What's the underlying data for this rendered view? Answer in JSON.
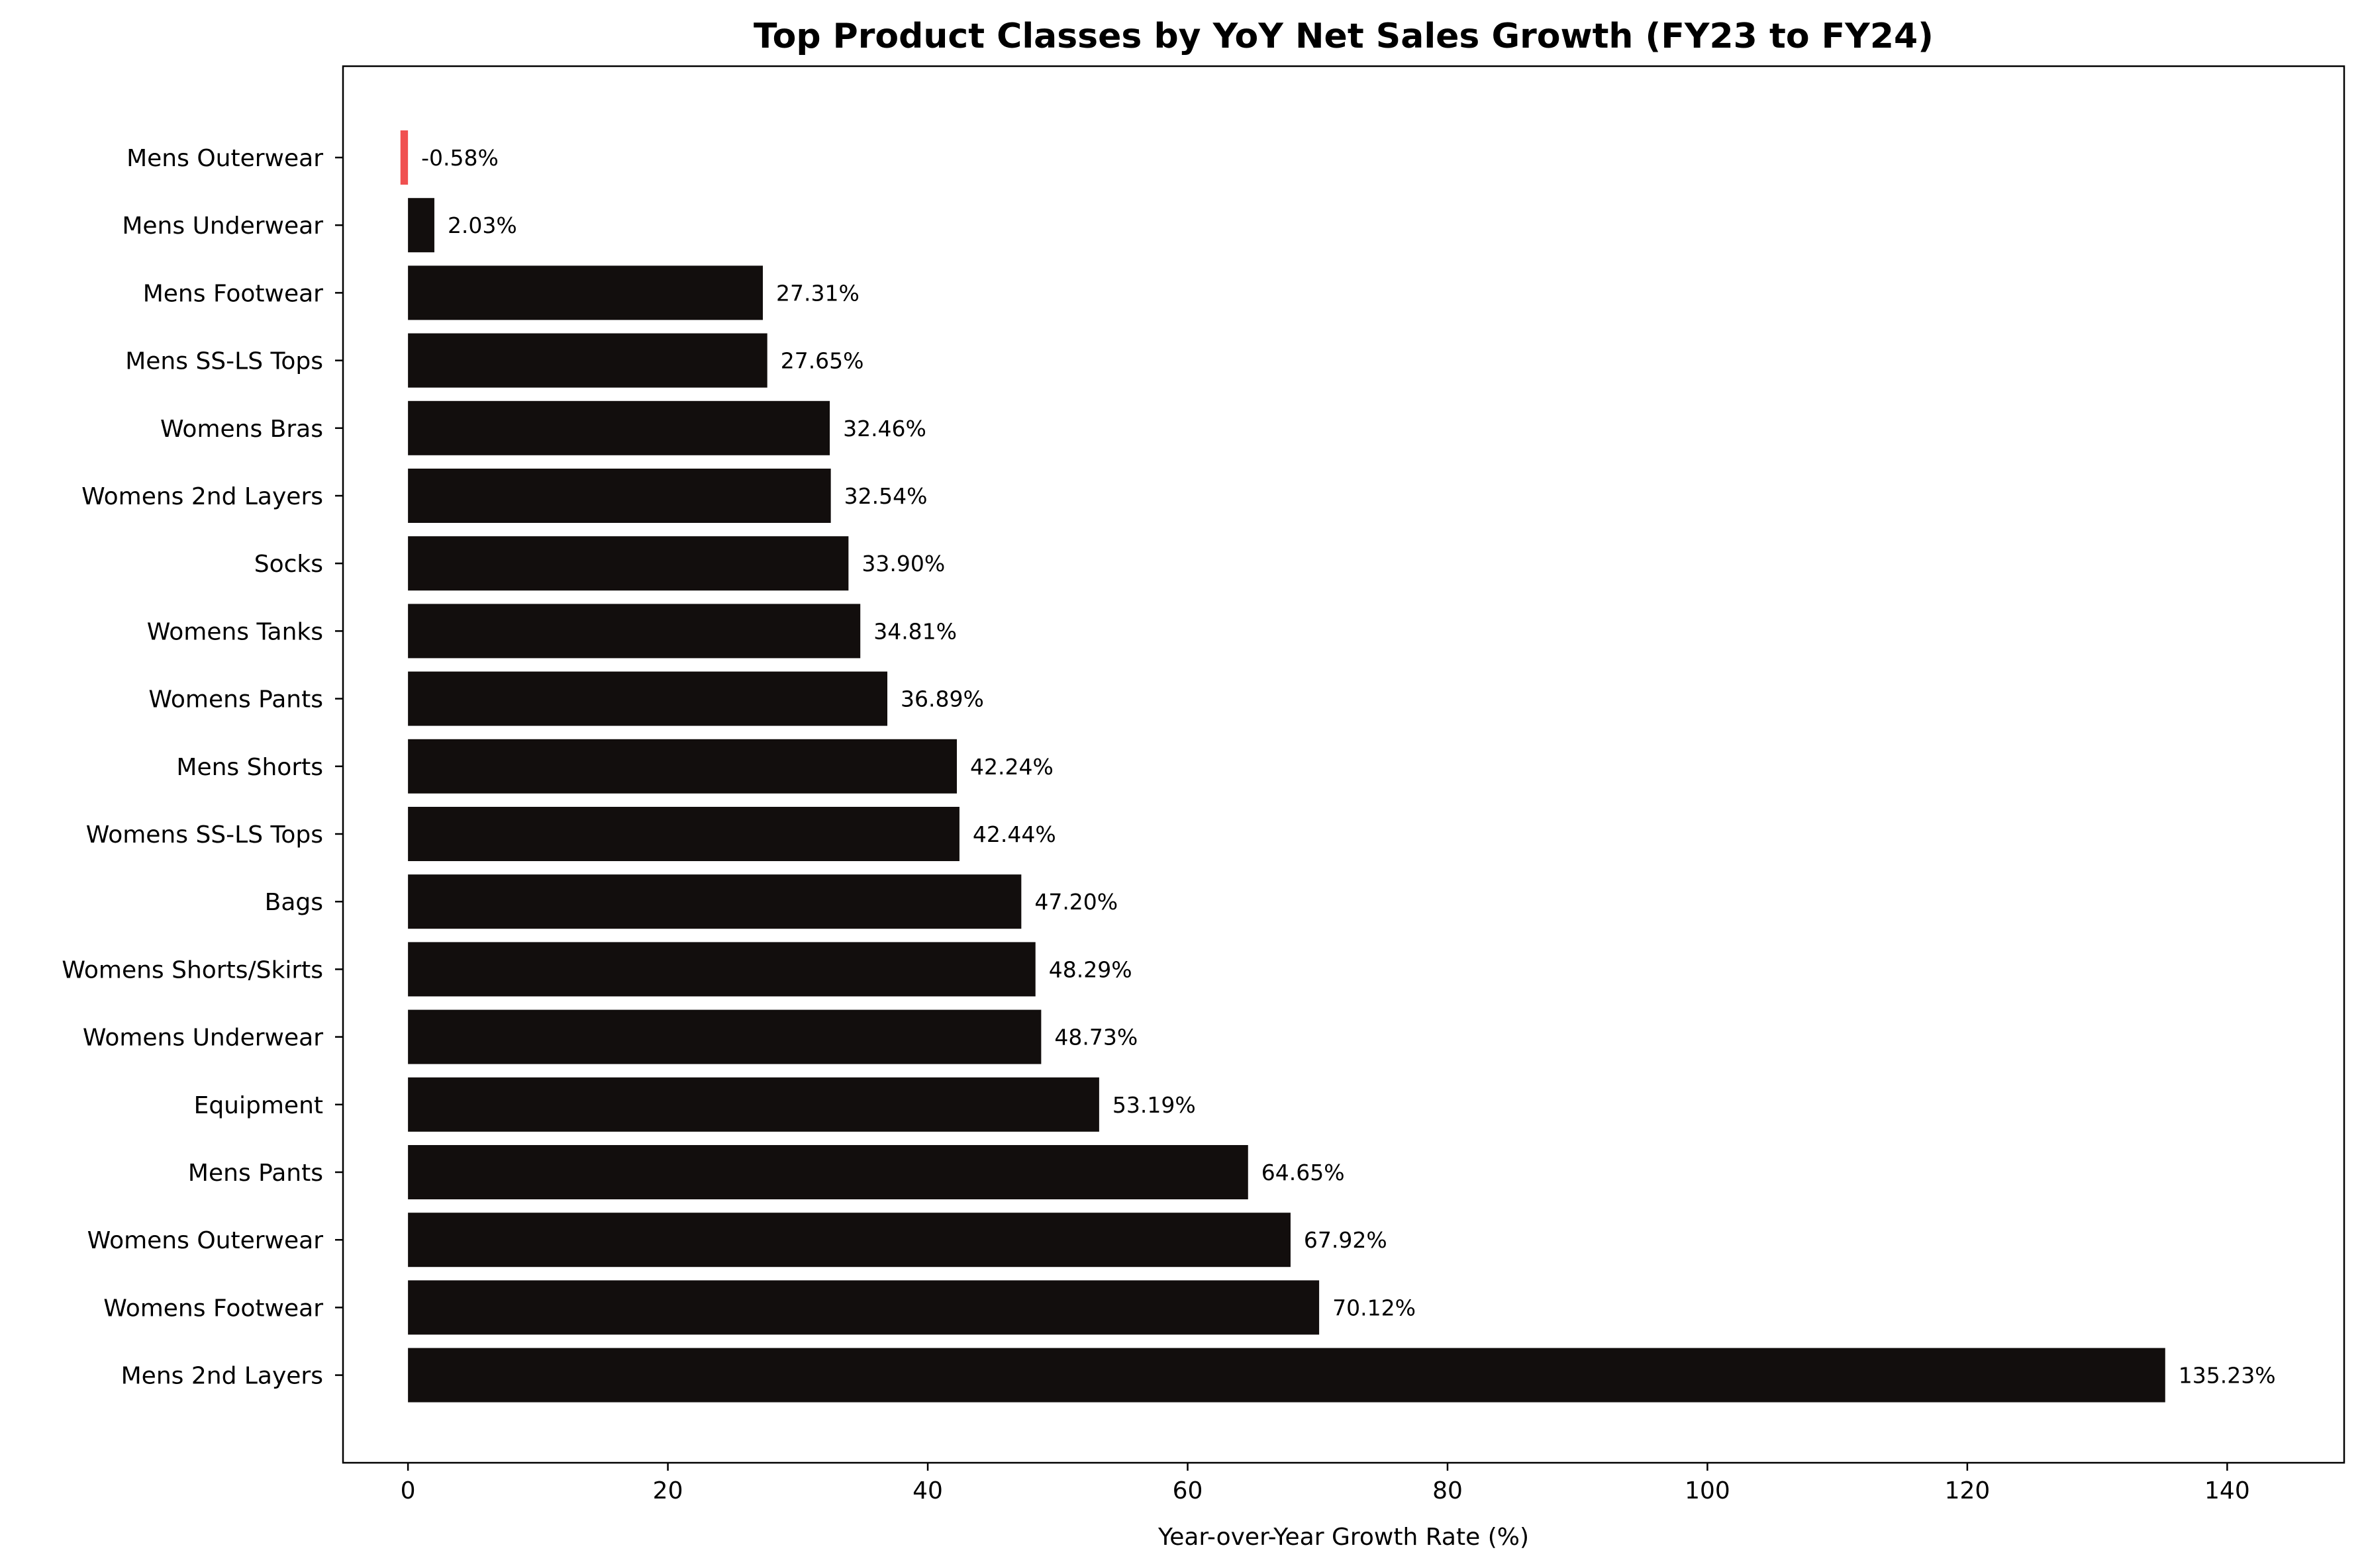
{
  "chart_data": {
    "type": "bar",
    "orientation": "horizontal",
    "title": "Top Product Classes by YoY Net Sales Growth (FY23 to FY24)",
    "xlabel": "Year-over-Year Growth Rate (%)",
    "ylabel": "",
    "xlim": [
      -5,
      149
    ],
    "xticks": [
      0,
      20,
      40,
      60,
      80,
      100,
      120,
      140
    ],
    "grid": false,
    "colors": {
      "positive": "#120e0d",
      "negative": "#f05050"
    },
    "categories": [
      "Mens Outerwear",
      "Mens Underwear",
      "Mens Footwear",
      "Mens SS-LS Tops",
      "Womens Bras",
      "Womens 2nd Layers",
      "Socks",
      "Womens Tanks",
      "Womens Pants",
      "Mens Shorts",
      "Womens SS-LS Tops",
      "Bags",
      "Womens Shorts/Skirts",
      "Womens Underwear",
      "Equipment",
      "Mens Pants",
      "Womens Outerwear",
      "Womens Footwear",
      "Mens 2nd Layers"
    ],
    "values": [
      -0.58,
      2.03,
      27.31,
      27.65,
      32.46,
      32.54,
      33.9,
      34.81,
      36.89,
      42.24,
      42.44,
      47.2,
      48.29,
      48.73,
      53.19,
      64.65,
      67.92,
      70.12,
      135.23
    ],
    "data_labels": [
      "-0.58%",
      "2.03%",
      "27.31%",
      "27.65%",
      "32.46%",
      "32.54%",
      "33.90%",
      "34.81%",
      "36.89%",
      "42.24%",
      "42.44%",
      "47.20%",
      "48.29%",
      "48.73%",
      "53.19%",
      "64.65%",
      "67.92%",
      "70.12%",
      "135.23%"
    ]
  }
}
